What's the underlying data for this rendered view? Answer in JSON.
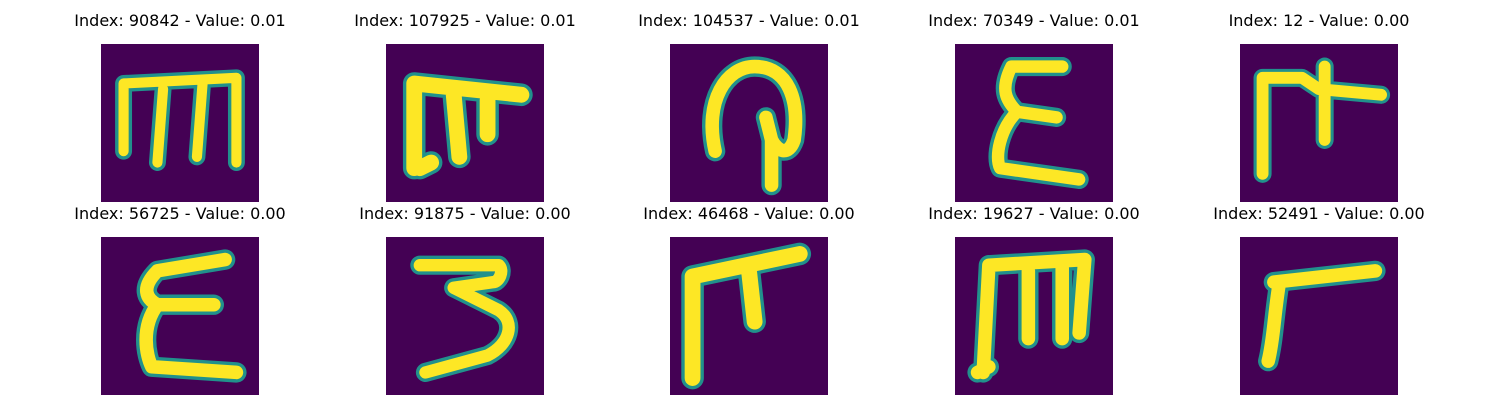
{
  "chart_data": {
    "type": "image-grid",
    "colormap": "viridis",
    "background_color": "#440154",
    "stroke_color": "#fde725",
    "edge_color": "#21918c",
    "panels": [
      {
        "title": "Index: 90842 - Value: 0.01",
        "index": 90842,
        "value": "0.01"
      },
      {
        "title": "Index: 107925 - Value: 0.01",
        "index": 107925,
        "value": "0.01"
      },
      {
        "title": "Index: 104537 - Value: 0.01",
        "index": 104537,
        "value": "0.01"
      },
      {
        "title": "Index: 70349 - Value: 0.01",
        "index": 70349,
        "value": "0.01"
      },
      {
        "title": "Index: 12 - Value: 0.00",
        "index": 12,
        "value": "0.00"
      },
      {
        "title": "Index: 56725 - Value: 0.00",
        "index": 56725,
        "value": "0.00"
      },
      {
        "title": "Index: 91875 - Value: 0.00",
        "index": 91875,
        "value": "0.00"
      },
      {
        "title": "Index: 46468 - Value: 0.00",
        "index": 46468,
        "value": "0.00"
      },
      {
        "title": "Index: 19627 - Value: 0.00",
        "index": 19627,
        "value": "0.00"
      },
      {
        "title": "Index: 52491 - Value: 0.00",
        "index": 52491,
        "value": "0.00"
      }
    ]
  }
}
